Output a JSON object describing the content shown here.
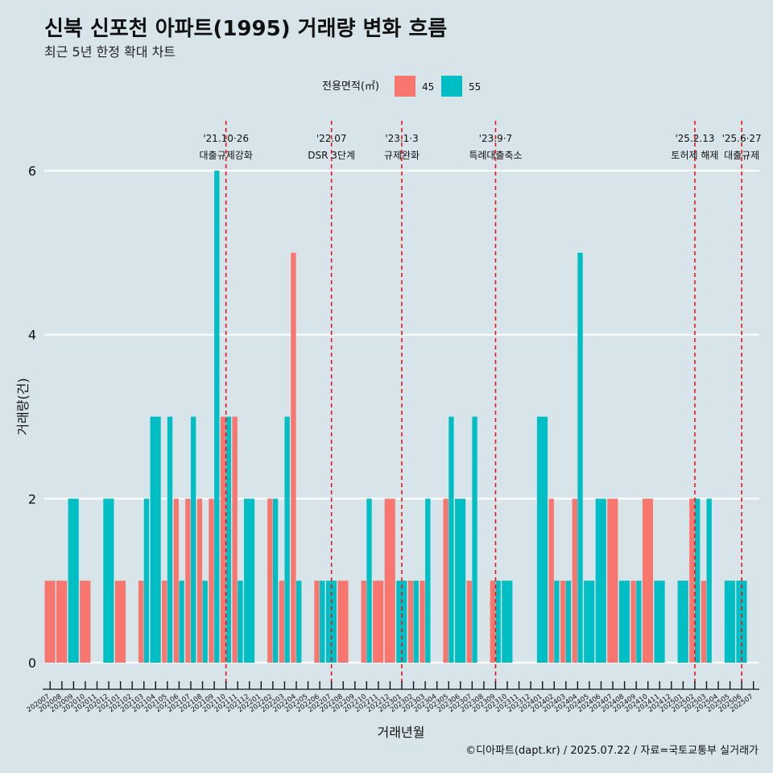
{
  "chart_data": {
    "type": "bar",
    "title": "신북 신포천 아파트(1995) 거래량 변화 흐름",
    "subtitle": "최근 5년 한정 확대 차트",
    "xlabel": "거래년월",
    "ylabel": "거래량(건)",
    "ylim": [
      0,
      6
    ],
    "yticks": [
      0,
      2,
      4,
      6
    ],
    "legend": {
      "title": "전용면적(㎡)",
      "entries": [
        {
          "name": "45",
          "color": "#f8766d"
        },
        {
          "name": "55",
          "color": "#00bfc4"
        }
      ]
    },
    "caption": "©디아파트(dapt.kr) / 2025.07.22 / 자료=국토교통부 실거래가",
    "categories": [
      "202007",
      "202008",
      "202009",
      "202010",
      "202011",
      "202012",
      "202101",
      "202102",
      "202103",
      "202104",
      "202105",
      "202106",
      "202107",
      "202108",
      "202109",
      "202110",
      "202111",
      "202112",
      "202201",
      "202202",
      "202203",
      "202204",
      "202205",
      "202206",
      "202207",
      "202208",
      "202209",
      "202210",
      "202211",
      "202212",
      "202301",
      "202302",
      "202303",
      "202304",
      "202305",
      "202306",
      "202307",
      "202308",
      "202309",
      "202310",
      "202311",
      "202312",
      "202401",
      "202402",
      "202403",
      "202404",
      "202405",
      "202406",
      "202407",
      "202408",
      "202409",
      "202410",
      "202411",
      "202412",
      "202501",
      "202502",
      "202503",
      "202504",
      "202505",
      "202506",
      "202507"
    ],
    "series": [
      {
        "name": "45",
        "color": "#f8766d",
        "values": [
          1,
          1,
          0,
          1,
          0,
          0,
          1,
          0,
          1,
          0,
          1,
          2,
          2,
          2,
          2,
          3,
          3,
          0,
          0,
          2,
          1,
          5,
          0,
          1,
          0,
          1,
          0,
          1,
          1,
          2,
          0,
          1,
          1,
          0,
          2,
          0,
          1,
          0,
          1,
          0,
          0,
          0,
          0,
          2,
          1,
          2,
          0,
          0,
          2,
          0,
          1,
          2,
          0,
          0,
          0,
          2,
          1,
          0,
          0,
          0,
          0
        ]
      },
      {
        "name": "55",
        "color": "#00bfc4",
        "values": [
          0,
          0,
          2,
          0,
          0,
          2,
          0,
          0,
          2,
          3,
          3,
          1,
          3,
          1,
          6,
          3,
          1,
          2,
          0,
          2,
          3,
          1,
          0,
          1,
          1,
          0,
          0,
          2,
          0,
          0,
          1,
          1,
          2,
          0,
          3,
          2,
          3,
          0,
          1,
          1,
          0,
          0,
          3,
          1,
          1,
          5,
          1,
          2,
          0,
          1,
          1,
          0,
          1,
          0,
          1,
          2,
          2,
          0,
          1,
          1,
          0
        ]
      }
    ],
    "events": [
      {
        "date": "'21.10·26",
        "label": "대출규제강화",
        "position_category": "202110"
      },
      {
        "date": "'22.07",
        "label": "DSR 3단계",
        "position_category": "202207"
      },
      {
        "date": "'23.1·3",
        "label": "규제완화",
        "position_category": "202301"
      },
      {
        "date": "'23.9·7",
        "label": "특례대출축소",
        "position_category": "202309"
      },
      {
        "date": "'25.2.13",
        "label": "토허제 해제",
        "position_category": "202502"
      },
      {
        "date": "'25.6·27",
        "label": "대출규제",
        "position_category": "202506"
      }
    ]
  }
}
